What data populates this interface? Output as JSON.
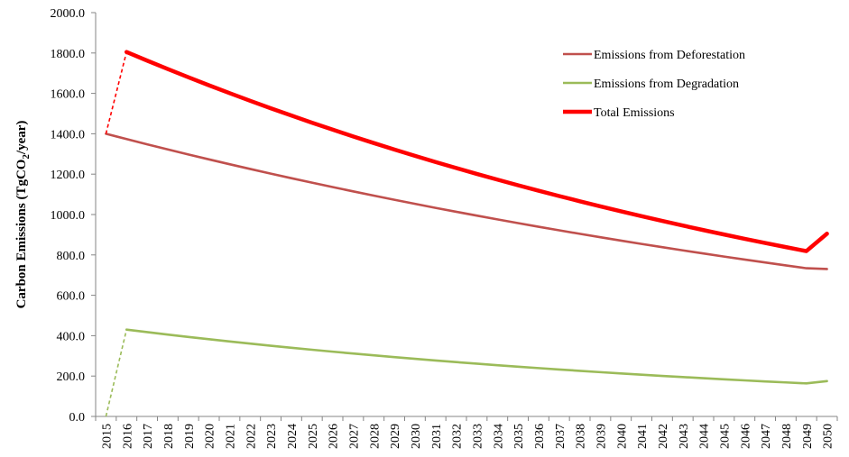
{
  "chart_data": {
    "type": "line",
    "title": "",
    "xlabel": "",
    "ylabel": {
      "prefix": "Carbon Emissions (TgCO",
      "subscript": "2",
      "suffix": "/year)"
    },
    "x": [
      2015,
      2016,
      2017,
      2018,
      2019,
      2020,
      2021,
      2022,
      2023,
      2024,
      2025,
      2026,
      2027,
      2028,
      2029,
      2030,
      2031,
      2032,
      2033,
      2034,
      2035,
      2036,
      2037,
      2038,
      2039,
      2040,
      2041,
      2042,
      2043,
      2044,
      2045,
      2046,
      2047,
      2048,
      2049,
      2050
    ],
    "x_tick_labels": [
      "2015",
      "2016",
      "2017",
      "2018",
      "2019",
      "2020",
      "2021",
      "2022",
      "2023",
      "2024",
      "2025",
      "2026",
      "2027",
      "2028",
      "2029",
      "2030",
      "2031",
      "2032",
      "2033",
      "2034",
      "2035",
      "2036",
      "2037",
      "2038",
      "2039",
      "2040",
      "2041",
      "2042",
      "2043",
      "2044",
      "2045",
      "2046",
      "2047",
      "2048",
      "2049",
      "2050"
    ],
    "ylim": [
      0,
      2000
    ],
    "y_ticks": [
      0,
      200,
      400,
      600,
      800,
      1000,
      1200,
      1400,
      1600,
      1800,
      2000
    ],
    "y_tick_labels": [
      "0.0",
      "200.0",
      "400.0",
      "600.0",
      "800.0",
      "1000.0",
      "1200.0",
      "1400.0",
      "1600.0",
      "1800.0",
      "2000.0"
    ],
    "grid": false,
    "legend_position": "top-right",
    "series": [
      {
        "name": "Emissions from Deforestation",
        "color": "#C0504D",
        "values": [
          1400,
          1373.7,
          1347.8,
          1322.5,
          1297.6,
          1273.2,
          1249.2,
          1225.7,
          1202.7,
          1180.0,
          1157.8,
          1136.0,
          1114.7,
          1093.7,
          1073.1,
          1052.9,
          1033.1,
          1013.7,
          994.6,
          975.9,
          957.5,
          939.5,
          921.8,
          904.5,
          887.5,
          870.8,
          854.4,
          838.3,
          822.5,
          807.1,
          791.9,
          777.0,
          762.4,
          748.0,
          733.9,
          730.0
        ],
        "dashed_first_segment": false,
        "emphasis": "normal"
      },
      {
        "name": "Emissions from Degradation",
        "color": "#9BBB59",
        "values": [
          0,
          430,
          417.6,
          405.5,
          393.8,
          382.5,
          371.4,
          360.7,
          350.3,
          340.2,
          330.4,
          320.8,
          311.6,
          302.6,
          293.9,
          285.4,
          277.1,
          269.1,
          261.4,
          253.8,
          246.5,
          239.4,
          232.5,
          225.8,
          219.3,
          212.9,
          206.8,
          200.8,
          195.0,
          189.4,
          183.9,
          178.6,
          173.5,
          168.5,
          163.6,
          175.0
        ],
        "dashed_first_segment": true,
        "emphasis": "normal"
      },
      {
        "name": "Total Emissions",
        "color": "#FF0000",
        "values": [
          1400,
          1805,
          1762.3,
          1720.6,
          1679.9,
          1640.1,
          1601.3,
          1563.4,
          1526.4,
          1490.3,
          1455.0,
          1420.6,
          1386.9,
          1354.1,
          1322.1,
          1290.8,
          1260.2,
          1230.4,
          1201.3,
          1172.9,
          1145.1,
          1118.0,
          1091.5,
          1065.7,
          1040.5,
          1015.8,
          991.8,
          968.3,
          945.4,
          923.0,
          901.2,
          879.8,
          859.0,
          838.7,
          818.8,
          905.0
        ],
        "dashed_first_segment": true,
        "emphasis": "bold"
      }
    ]
  }
}
